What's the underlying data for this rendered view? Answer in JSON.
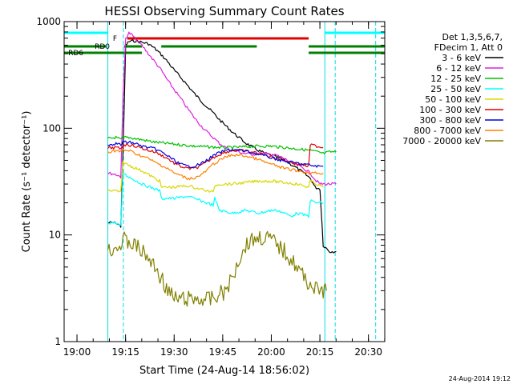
{
  "chart_data": {
    "type": "line",
    "title": "HESSI Observing Summary Count Rates",
    "xlabel": "Start Time (24-Aug-14 18:56:02)",
    "ylabel": "Count Rate (s⁻¹ detector⁻¹)",
    "x_units": "minutes after 18:56:02",
    "xlim": [
      0,
      99
    ],
    "ylim": [
      1,
      1000
    ],
    "y_scale": "log",
    "x_ticks": [
      {
        "x": 3.97,
        "label": "19:00"
      },
      {
        "x": 18.97,
        "label": "19:15"
      },
      {
        "x": 33.97,
        "label": "19:30"
      },
      {
        "x": 48.97,
        "label": "19:45"
      },
      {
        "x": 63.97,
        "label": "20:00"
      },
      {
        "x": 78.97,
        "label": "20:15"
      },
      {
        "x": 93.97,
        "label": "20:30"
      }
    ],
    "y_ticks": [
      {
        "y": 1,
        "label": "1"
      },
      {
        "y": 10,
        "label": "10"
      },
      {
        "y": 100,
        "label": "100"
      },
      {
        "y": 1000,
        "label": "1000"
      }
    ],
    "legend_position": "right",
    "legend_header": [
      "Det 1,3,5,6,7,",
      "FDecim 1, Att 0"
    ],
    "timestamp": "24-Aug-2014 19:12",
    "series": [
      {
        "name": "3 - 6 keV",
        "color": "#000000",
        "x": [
          13.5,
          16,
          17.5,
          18.2,
          19,
          20,
          22,
          24,
          26,
          28,
          30,
          32,
          34,
          36,
          38,
          40,
          42,
          44,
          46,
          48,
          50,
          52,
          54,
          56,
          58,
          60,
          62,
          64,
          66,
          68,
          70,
          72,
          74,
          76,
          77.5,
          79,
          80,
          82,
          84
        ],
        "y": [
          13,
          13,
          12,
          60,
          600,
          650,
          660,
          640,
          620,
          560,
          490,
          420,
          350,
          300,
          255,
          215,
          185,
          160,
          140,
          120,
          105,
          92,
          82,
          73,
          67,
          62,
          58,
          56,
          53,
          50,
          46,
          42,
          38,
          34,
          28,
          27,
          8,
          7,
          7
        ]
      },
      {
        "name": "6 - 12 keV",
        "color": "#e020e0",
        "x": [
          13.5,
          16,
          17.5,
          18.2,
          19,
          20,
          21,
          22,
          24,
          26,
          28,
          30,
          32,
          34,
          36,
          38,
          40,
          42,
          44,
          46,
          48,
          50,
          52,
          54,
          56,
          58,
          60,
          62,
          64,
          66,
          68,
          70,
          72,
          74,
          76,
          77.5,
          79,
          80,
          82,
          84
        ],
        "y": [
          38,
          37,
          35,
          200,
          700,
          780,
          750,
          690,
          600,
          500,
          420,
          350,
          280,
          230,
          190,
          155,
          128,
          108,
          93,
          82,
          72,
          66,
          62,
          60,
          58,
          57,
          58,
          58,
          57,
          55,
          52,
          48,
          45,
          42,
          38,
          33,
          30,
          30,
          30,
          30
        ]
      },
      {
        "name": "12 - 25 keV",
        "color": "#00c000",
        "x": [
          13.5,
          16,
          17.5,
          18.2,
          20,
          24,
          28,
          32,
          36,
          40,
          44,
          48,
          52,
          56,
          60,
          64,
          68,
          72,
          76,
          78,
          80,
          82,
          84
        ],
        "y": [
          80,
          82,
          78,
          82,
          82,
          78,
          74,
          72,
          70,
          68,
          67,
          66,
          66,
          67,
          68,
          68,
          66,
          64,
          62,
          60,
          58,
          60,
          60
        ]
      },
      {
        "name": "25 - 50 keV",
        "color": "#00ffff",
        "x": [
          13.5,
          16,
          17.5,
          18.2,
          20,
          24,
          28,
          29.5,
          30,
          34,
          38,
          40,
          42,
          44,
          46,
          46.5,
          48,
          52,
          56,
          60,
          64,
          66,
          68,
          70,
          72,
          75.5,
          76,
          78,
          80
        ],
        "y": [
          13,
          13,
          12,
          38,
          35,
          30,
          27,
          26,
          22,
          22,
          23,
          22,
          21,
          20,
          19,
          22,
          17,
          16,
          17,
          16,
          17,
          17,
          16,
          15,
          16,
          15,
          21,
          20,
          20
        ]
      },
      {
        "name": "50 - 100 keV",
        "color": "#d8d800",
        "x": [
          13.5,
          16,
          17.5,
          18.2,
          20,
          24,
          28,
          29.5,
          30,
          34,
          38,
          40,
          42,
          44,
          46,
          46.5,
          48,
          52,
          56,
          60,
          64,
          68,
          72,
          75.5,
          76,
          78,
          80
        ],
        "y": [
          26,
          26,
          25,
          48,
          45,
          40,
          34,
          32,
          28,
          28,
          29,
          28,
          27,
          26,
          25,
          29,
          30,
          30,
          31,
          32,
          32,
          31,
          30,
          28,
          32,
          30,
          28
        ]
      },
      {
        "name": "100 - 300 keV",
        "color": "#e00000",
        "x": [
          13.5,
          16,
          17.5,
          18.2,
          20,
          22,
          24,
          26,
          28,
          30,
          32,
          34,
          36,
          38,
          40,
          42,
          44,
          46,
          48,
          50,
          52,
          54,
          56,
          58,
          60,
          62,
          64,
          66,
          68,
          70,
          72,
          74,
          75.5,
          76,
          78,
          80
        ],
        "y": [
          65,
          66,
          64,
          70,
          70,
          68,
          65,
          62,
          60,
          56,
          52,
          47,
          44,
          42,
          42,
          44,
          48,
          53,
          57,
          60,
          62,
          62,
          61,
          60,
          58,
          56,
          54,
          52,
          50,
          48,
          46,
          45,
          44,
          70,
          68,
          66
        ]
      },
      {
        "name": "300 - 800 keV",
        "color": "#0000e0",
        "x": [
          13.5,
          16,
          17.5,
          18.2,
          20,
          22,
          24,
          26,
          28,
          30,
          32,
          34,
          36,
          38,
          40,
          42,
          44,
          46,
          48,
          50,
          52,
          54,
          56,
          58,
          60,
          62,
          64,
          66,
          68,
          70,
          72,
          74,
          76,
          78,
          80
        ],
        "y": [
          70,
          72,
          70,
          74,
          74,
          72,
          68,
          66,
          64,
          60,
          55,
          50,
          46,
          44,
          44,
          46,
          50,
          55,
          59,
          62,
          63,
          62,
          61,
          59,
          57,
          55,
          53,
          51,
          49,
          48,
          47,
          46,
          45,
          44,
          44
        ]
      },
      {
        "name": "800 - 7000 keV",
        "color": "#ff8000",
        "x": [
          13.5,
          16,
          17.5,
          18.2,
          20,
          22,
          24,
          26,
          28,
          30,
          32,
          34,
          36,
          38,
          40,
          42,
          44,
          46,
          48,
          50,
          52,
          54,
          56,
          58,
          60,
          62,
          64,
          66,
          68,
          70,
          72,
          74,
          76,
          78,
          80
        ],
        "y": [
          60,
          62,
          60,
          62,
          62,
          58,
          55,
          52,
          48,
          45,
          42,
          38,
          36,
          34,
          34,
          36,
          40,
          46,
          50,
          54,
          56,
          56,
          55,
          53,
          51,
          48,
          46,
          44,
          42,
          41,
          40,
          39,
          38,
          38,
          38
        ]
      },
      {
        "name": "7000 - 20000 keV",
        "color": "#808000",
        "x": [
          13.5,
          15,
          17.5,
          18.2,
          20,
          22,
          24,
          26,
          28,
          30,
          32,
          34,
          36,
          38,
          40,
          42,
          44,
          46,
          48,
          50,
          52,
          54,
          56,
          58,
          60,
          62,
          64,
          66,
          68,
          70,
          72,
          74,
          76,
          78,
          80,
          81
        ],
        "y": [
          7,
          7.5,
          8,
          9,
          8.5,
          8,
          7,
          6,
          5,
          4,
          3,
          2.5,
          2.5,
          2.5,
          2.5,
          2.5,
          2.5,
          2.5,
          2.8,
          3,
          4,
          6,
          8,
          9,
          9.5,
          9.5,
          9,
          8,
          7,
          6,
          5,
          4,
          3.5,
          3,
          3,
          3
        ]
      }
    ],
    "annotations": [
      {
        "label": "F",
        "color": "#e00000",
        "segments": [
          [
            19.5,
            75.5
          ]
        ]
      },
      {
        "label": "RD0",
        "color": "#008000",
        "segments": [
          [
            0,
            13
          ],
          [
            18.5,
            24
          ],
          [
            30,
            59.5
          ],
          [
            75.5,
            99
          ]
        ]
      },
      {
        "label": "RD6",
        "color": "#008000",
        "segments": [
          [
            0,
            24
          ],
          [
            75.5,
            99
          ]
        ]
      }
    ],
    "cyan_top_bars": [
      [
        0,
        13.5
      ],
      [
        80.5,
        99
      ]
    ],
    "cyan_vlines_solid": [
      13.5,
      80.5
    ],
    "cyan_vlines_dashed": [
      18.3,
      83.7,
      96.2
    ]
  }
}
